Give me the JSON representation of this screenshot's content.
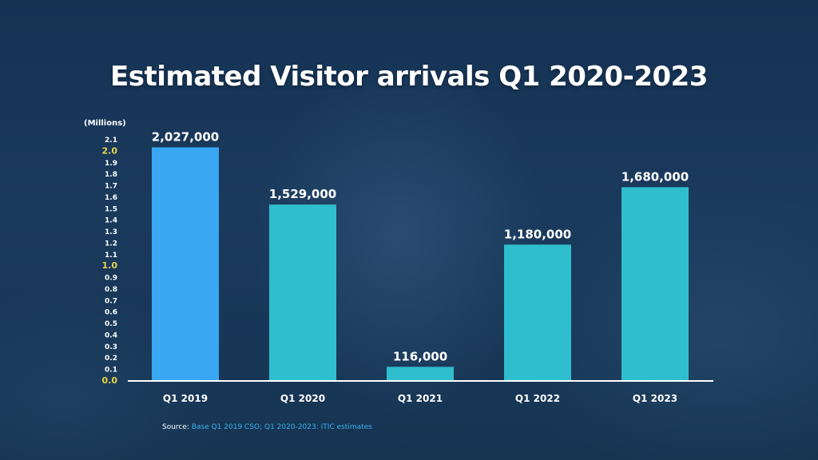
{
  "title": "Estimated Visitor arrivals Q1 2020-2023",
  "source": {
    "prefix": "Source: ",
    "text": "Base Q1 2019 CSO; Q1 2020-2023: ITIC estimates"
  },
  "colors": {
    "highlight_bar": "#3aa7f3",
    "bar": "#2fbece",
    "axis_text": "#ffffff",
    "highlight_tick": "#e8d44a"
  },
  "chart_data": {
    "type": "bar",
    "unit_label": "(Millions)",
    "categories": [
      "Q1 2019",
      "Q1 2020",
      "Q1 2021",
      "Q1 2022",
      "Q1 2023"
    ],
    "values": [
      2027000,
      1529000,
      116000,
      1180000,
      1680000
    ],
    "data_labels": [
      "2,027,000",
      "1,529,000",
      "116,000",
      "1,180,000",
      "1,680,000"
    ],
    "ylim": [
      0,
      2.1
    ],
    "y_ticks": [
      "0.0",
      "0.1",
      "0.2",
      "0.3",
      "0.4",
      "0.5",
      "0.6",
      "0.7",
      "0.8",
      "0.9",
      "1.0",
      "1.1",
      "1.2",
      "1.3",
      "1.4",
      "1.5",
      "1.6",
      "1.7",
      "1.8",
      "1.9",
      "2.0",
      "2.1"
    ],
    "highlight_ticks": [
      "0.0",
      "1.0",
      "2.0"
    ],
    "highlight_category": "Q1 2019",
    "grid": false
  }
}
